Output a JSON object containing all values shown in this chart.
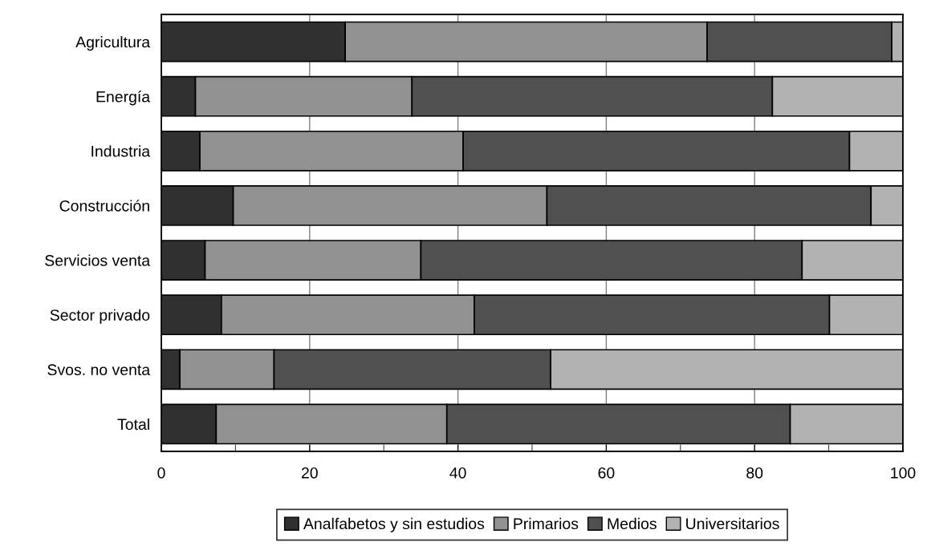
{
  "chart_data": {
    "type": "bar",
    "orientation": "horizontal",
    "stacked": true,
    "categories": [
      "Agricultura",
      "Energía",
      "Industria",
      "Construcción",
      "Servicios venta",
      "Sector privado",
      "Svos. no venta",
      "Total"
    ],
    "series": [
      {
        "name": "Analfabetos y sin estudios",
        "color": "#303030",
        "values": [
          24.8,
          4.6,
          5.2,
          9.7,
          5.9,
          8.1,
          2.5,
          7.4
        ]
      },
      {
        "name": "Primarios",
        "color": "#919191",
        "values": [
          48.8,
          29.2,
          35.5,
          42.3,
          29.1,
          34.1,
          12.7,
          31.1
        ]
      },
      {
        "name": "Medios",
        "color": "#505050",
        "values": [
          24.9,
          48.6,
          52.1,
          43.7,
          51.4,
          47.9,
          37.3,
          46.3
        ]
      },
      {
        "name": "Universitarios",
        "color": "#b2b2b2",
        "values": [
          1.5,
          17.6,
          7.2,
          4.3,
          13.6,
          9.9,
          47.5,
          15.2
        ]
      }
    ],
    "xlim": [
      0,
      100
    ],
    "xticks": [
      0,
      20,
      40,
      60,
      80,
      100
    ],
    "grid": "x",
    "legend": "bottom"
  }
}
